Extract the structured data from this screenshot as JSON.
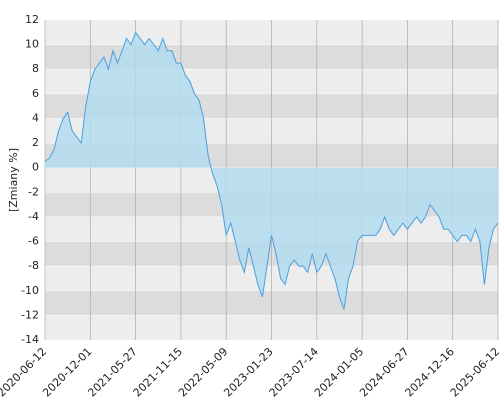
{
  "chart_data": {
    "type": "area-line",
    "y_label": "[Zmiany %]",
    "categories": [
      "2020-06-12",
      null,
      null,
      null,
      null,
      null,
      null,
      null,
      null,
      null,
      "2020-12-01",
      null,
      null,
      null,
      null,
      null,
      null,
      null,
      null,
      null,
      "2021-05-27",
      null,
      null,
      null,
      null,
      null,
      null,
      null,
      null,
      null,
      "2021-11-15",
      null,
      null,
      null,
      null,
      null,
      null,
      null,
      null,
      null,
      "2022-05-09",
      null,
      null,
      null,
      null,
      null,
      null,
      null,
      null,
      null,
      "2023-01-23",
      null,
      null,
      null,
      null,
      null,
      null,
      null,
      null,
      null,
      "2023-07-14",
      null,
      null,
      null,
      null,
      null,
      null,
      null,
      null,
      null,
      "2024-01-05",
      null,
      null,
      null,
      null,
      null,
      null,
      null,
      null,
      null,
      "2024-06-27",
      null,
      null,
      null,
      null,
      null,
      null,
      null,
      null,
      null,
      "2024-12-16",
      null,
      null,
      null,
      null,
      null,
      null,
      null,
      null,
      null,
      "2025-06-12"
    ],
    "values": [
      0.5,
      0.8,
      1.5,
      3,
      4,
      4.5,
      3,
      2.5,
      2,
      5,
      7,
      8,
      8.5,
      9,
      8,
      9.5,
      8.5,
      9.5,
      10.5,
      10,
      11,
      10.5,
      10,
      10.5,
      10,
      9.5,
      10.5,
      9.5,
      9.5,
      8.5,
      8.5,
      7.5,
      7,
      6,
      5.5,
      4,
      1,
      -0.5,
      -1.5,
      -3,
      -5.5,
      -4.5,
      -6,
      -7.5,
      -8.5,
      -6.5,
      -8,
      -9.5,
      -10.5,
      -8,
      -5.5,
      -7,
      -9,
      -9.5,
      -8,
      -7.5,
      -8,
      -8,
      -8.5,
      -7,
      -8.5,
      -8,
      -7,
      -8,
      -9,
      -10.5,
      -11.5,
      -9,
      -8,
      -6,
      -5.5,
      -5.5,
      -5.5,
      -5.5,
      -5,
      -4,
      -5,
      -5.5,
      -5,
      -4.5,
      -5,
      -4.5,
      -4,
      -4.5,
      -4,
      -3,
      -3.5,
      -4,
      -5,
      -5,
      -5.5,
      -6,
      -5.5,
      -5.5,
      -6,
      -5,
      -6,
      -9.5,
      -6.5,
      -5,
      -4.5
    ],
    "color": "#4a9fe0",
    "fill": "#b3dcef",
    "ylim": [
      -14,
      12
    ],
    "yticks": [
      -14,
      -12,
      -10,
      -8,
      -6,
      -4,
      -2,
      0,
      2,
      4,
      6,
      8,
      10,
      12
    ],
    "grid": true
  }
}
